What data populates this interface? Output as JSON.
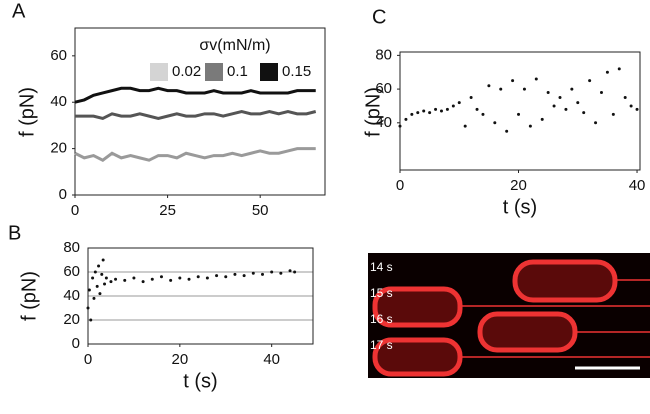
{
  "chart_data": [
    {
      "type": "line",
      "panel": "A",
      "ylabel": "f (pN)",
      "legend_title": "σv(mN/m)",
      "legend": "top-right",
      "x": [
        0,
        2.5,
        5,
        7.5,
        10,
        12.5,
        15,
        17.5,
        20,
        22.5,
        25,
        27.5,
        30,
        32.5,
        35,
        37.5,
        40,
        42.5,
        45,
        47.5,
        50,
        52.5,
        55,
        57.5,
        60,
        62.5,
        65
      ],
      "series": [
        {
          "name": "0.02",
          "color": "#9a9a9a",
          "legend_color": "#d4d4d4",
          "values": [
            18,
            16,
            17,
            15,
            18,
            16,
            17,
            16,
            15,
            17,
            17,
            16,
            18,
            17,
            16,
            17,
            17,
            18,
            17,
            18,
            19,
            18,
            18,
            19,
            20,
            20,
            20
          ]
        },
        {
          "name": "0.1",
          "color": "#555555",
          "legend_color": "#7a7a7a",
          "values": [
            34,
            34,
            34,
            33,
            35,
            34,
            34,
            35,
            34,
            33,
            34,
            35,
            34,
            34,
            35,
            35,
            34,
            35,
            36,
            35,
            35,
            36,
            35,
            36,
            35,
            35,
            36
          ]
        },
        {
          "name": "0.15",
          "color": "#111111",
          "legend_color": "#111111",
          "values": [
            40,
            41,
            43,
            44,
            45,
            46,
            46,
            45,
            45,
            46,
            45,
            45,
            44,
            44,
            44,
            45,
            44,
            44,
            44,
            45,
            44,
            44,
            44,
            44,
            45,
            45,
            45
          ]
        }
      ],
      "xlim": [
        0,
        67.5
      ],
      "ylim": [
        0,
        72
      ],
      "xticks": [
        0,
        25,
        50
      ],
      "yticks": [
        0,
        20,
        40,
        60
      ],
      "grid": false
    },
    {
      "type": "scatter",
      "panel": "B",
      "ylabel": "f (pN)",
      "xlabel": "t (s)",
      "color": "#111111",
      "x": [
        0,
        0.3,
        0.6,
        1,
        1.3,
        1.6,
        2,
        2.3,
        2.6,
        3,
        3.3,
        3.6,
        4,
        5,
        6,
        8,
        10,
        12,
        14,
        16,
        18,
        20,
        22,
        24,
        26,
        28,
        30,
        32,
        34,
        36,
        38,
        40,
        42,
        44,
        45
      ],
      "values": [
        30,
        45,
        20,
        55,
        38,
        60,
        48,
        65,
        42,
        58,
        70,
        50,
        55,
        52,
        54,
        53,
        55,
        52,
        54,
        56,
        53,
        55,
        54,
        56,
        55,
        57,
        56,
        58,
        57,
        59,
        58,
        60,
        59,
        61,
        60
      ],
      "xlim": [
        0,
        49
      ],
      "ylim": [
        0,
        80
      ],
      "xticks": [
        0,
        20,
        40
      ],
      "yticks": [
        0,
        20,
        40,
        60,
        80
      ],
      "grid": true
    },
    {
      "type": "scatter",
      "panel": "C",
      "ylabel": "f (pN)",
      "xlabel": "t (s)",
      "color": "#111111",
      "x": [
        0,
        1,
        2,
        3,
        4,
        5,
        6,
        7,
        8,
        9,
        10,
        11,
        12,
        13,
        14,
        15,
        16,
        17,
        18,
        19,
        20,
        21,
        22,
        23,
        24,
        25,
        26,
        27,
        28,
        29,
        30,
        31,
        32,
        33,
        34,
        35,
        36,
        37,
        38,
        39,
        40
      ],
      "values": [
        38,
        42,
        45,
        46,
        47,
        46,
        48,
        47,
        48,
        50,
        52,
        38,
        55,
        48,
        45,
        62,
        40,
        60,
        35,
        65,
        45,
        60,
        38,
        66,
        42,
        58,
        50,
        55,
        48,
        60,
        52,
        46,
        65,
        40,
        58,
        70,
        45,
        72,
        55,
        50,
        48
      ],
      "xlim": [
        0,
        40.5
      ],
      "ylim": [
        12,
        82
      ],
      "xticks": [
        0,
        20,
        40
      ],
      "yticks": [
        40,
        60,
        80
      ],
      "grid": false
    }
  ],
  "image_panel": {
    "labels": [
      "14 s",
      "15 s",
      "16 s",
      "17 s"
    ]
  }
}
